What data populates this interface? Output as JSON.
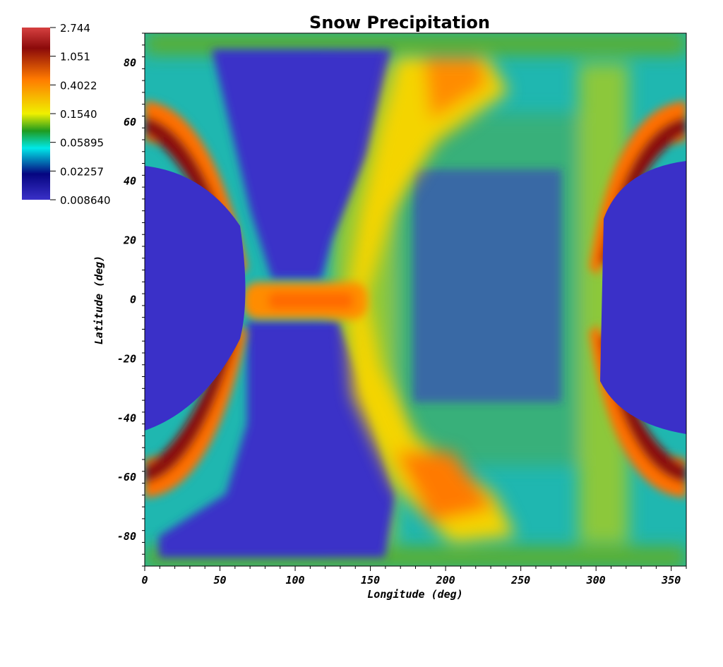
{
  "chart_data": {
    "type": "heatmap",
    "title": "Snow Precipitation",
    "xlabel": "Longitude (deg)",
    "ylabel": "Latitude (deg)",
    "xlim": [
      0,
      360
    ],
    "ylim": [
      -90,
      90
    ],
    "x_ticks": [
      0,
      50,
      100,
      150,
      200,
      250,
      300,
      350
    ],
    "y_ticks": [
      80,
      60,
      40,
      20,
      0,
      -20,
      -40,
      -60,
      -80
    ],
    "colorbar": {
      "labels": [
        "2.744",
        "1.051",
        "0.4022",
        "0.1540",
        "0.05895",
        "0.02257",
        "0.008640"
      ],
      "colors": [
        "#d64040",
        "#8b0a0a",
        "#ff7a00",
        "#f0f000",
        "#1f9b1f",
        "#00e8e8",
        "#050580",
        "#3a30c8"
      ],
      "scale": "log"
    },
    "regions": [
      {
        "name": "equatorial band",
        "lon": [
          70,
          140
        ],
        "lat": [
          -7,
          7
        ],
        "level": 0.4022
      },
      {
        "name": "western arcs",
        "lon": [
          0,
          75
        ],
        "lat_north": [
          42,
          65
        ],
        "lat_south": [
          -65,
          -42
        ],
        "level": 1.051
      },
      {
        "name": "eastern arcs",
        "lon": [
          285,
          360
        ],
        "lat_north": [
          42,
          65
        ],
        "lat_south": [
          -65,
          -42
        ],
        "level": 1.051
      },
      {
        "name": "central dry region",
        "lon": [
          60,
          155
        ],
        "lat": [
          -85,
          85
        ],
        "level": 0.00864
      },
      {
        "name": "polar caps",
        "lon": [
          0,
          360
        ],
        "lat": [
          -90,
          90
        ],
        "level": 0.154
      }
    ]
  }
}
